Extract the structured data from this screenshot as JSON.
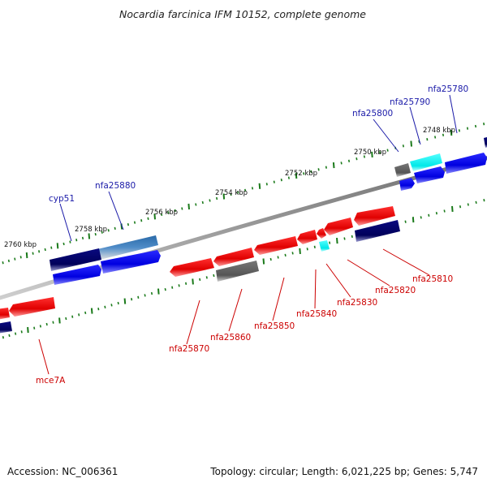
{
  "title": "Nocardia farcinica IFM 10152, complete genome",
  "footer": {
    "accession": "Accession: NC_006361",
    "topology": "Topology: circular; Length: 6,021,225 bp; Genes: 5,747"
  },
  "scale_labels": [
    "2748 kbp",
    "2750 kbp",
    "2752 kbp",
    "2754 kbp",
    "2756 kbp",
    "2758 kbp",
    "2760 kbp"
  ],
  "genes": {
    "forward": [
      "nfa25780",
      "nfa25790",
      "nfa25800",
      "nfa25880",
      "cyp51"
    ],
    "reverse": [
      "nfa25810",
      "nfa25820",
      "nfa25830",
      "nfa25840",
      "nfa25850",
      "nfa25860",
      "nfa25870",
      "mce7A"
    ]
  },
  "colors": {
    "backbone": "#8c8c8c",
    "forward_gene": "#0000ee",
    "forward_label": "#1a1aa8",
    "reverse_gene": "#ee0000",
    "reverse_label": "#cc0000",
    "pseudo_dark": "#00006a",
    "pseudo_grey": "#666666",
    "rna_cyan": "#00ffff",
    "tick": "#1a7a1a"
  }
}
